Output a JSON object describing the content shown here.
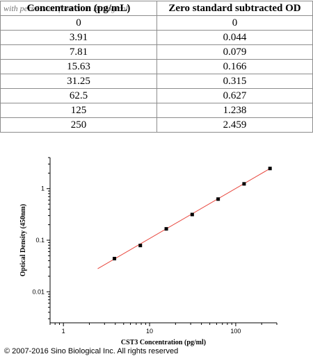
{
  "table": {
    "headers": [
      "Concentration (pg/mL)",
      "Zero standard subtracted OD"
    ],
    "watermark": "with permission from Sino Biological",
    "rows": [
      [
        "0",
        "0"
      ],
      [
        "3.91",
        "0.044"
      ],
      [
        "7.81",
        "0.079"
      ],
      [
        "15.63",
        "0.166"
      ],
      [
        "31.25",
        "0.315"
      ],
      [
        "62.5",
        "0.627"
      ],
      [
        "125",
        "1.238"
      ],
      [
        "250",
        "2.459"
      ]
    ]
  },
  "chart_data": {
    "type": "scatter",
    "xlabel": "CST3 Concentration (pg/ml)",
    "ylabel": "Optical Density (450nm)",
    "xscale": "log",
    "yscale": "log",
    "xlim": [
      0.7,
      300
    ],
    "ylim": [
      0.0025,
      4
    ],
    "x_ticks": [
      {
        "value": 1,
        "label": "1"
      },
      {
        "value": 10,
        "label": "10"
      },
      {
        "value": 100,
        "label": "100"
      }
    ],
    "y_ticks": [
      {
        "value": 0.01,
        "label": "0.01"
      },
      {
        "value": 0.1,
        "label": "0.1"
      },
      {
        "value": 1,
        "label": "1"
      }
    ],
    "grid": false,
    "series": [
      {
        "x": [
          3.91,
          7.81,
          15.63,
          31.25,
          62.5,
          125,
          250
        ],
        "y": [
          0.044,
          0.079,
          0.166,
          0.315,
          0.627,
          1.238,
          2.459
        ]
      }
    ],
    "fit_line": {
      "x": [
        2.5,
        260
      ],
      "y": [
        0.028,
        2.55
      ],
      "color": "#e8453c"
    },
    "point_color": "#000000"
  },
  "footer": {
    "copyright": "© 2007-2016 Sino Biological Inc. All rights reserved"
  }
}
